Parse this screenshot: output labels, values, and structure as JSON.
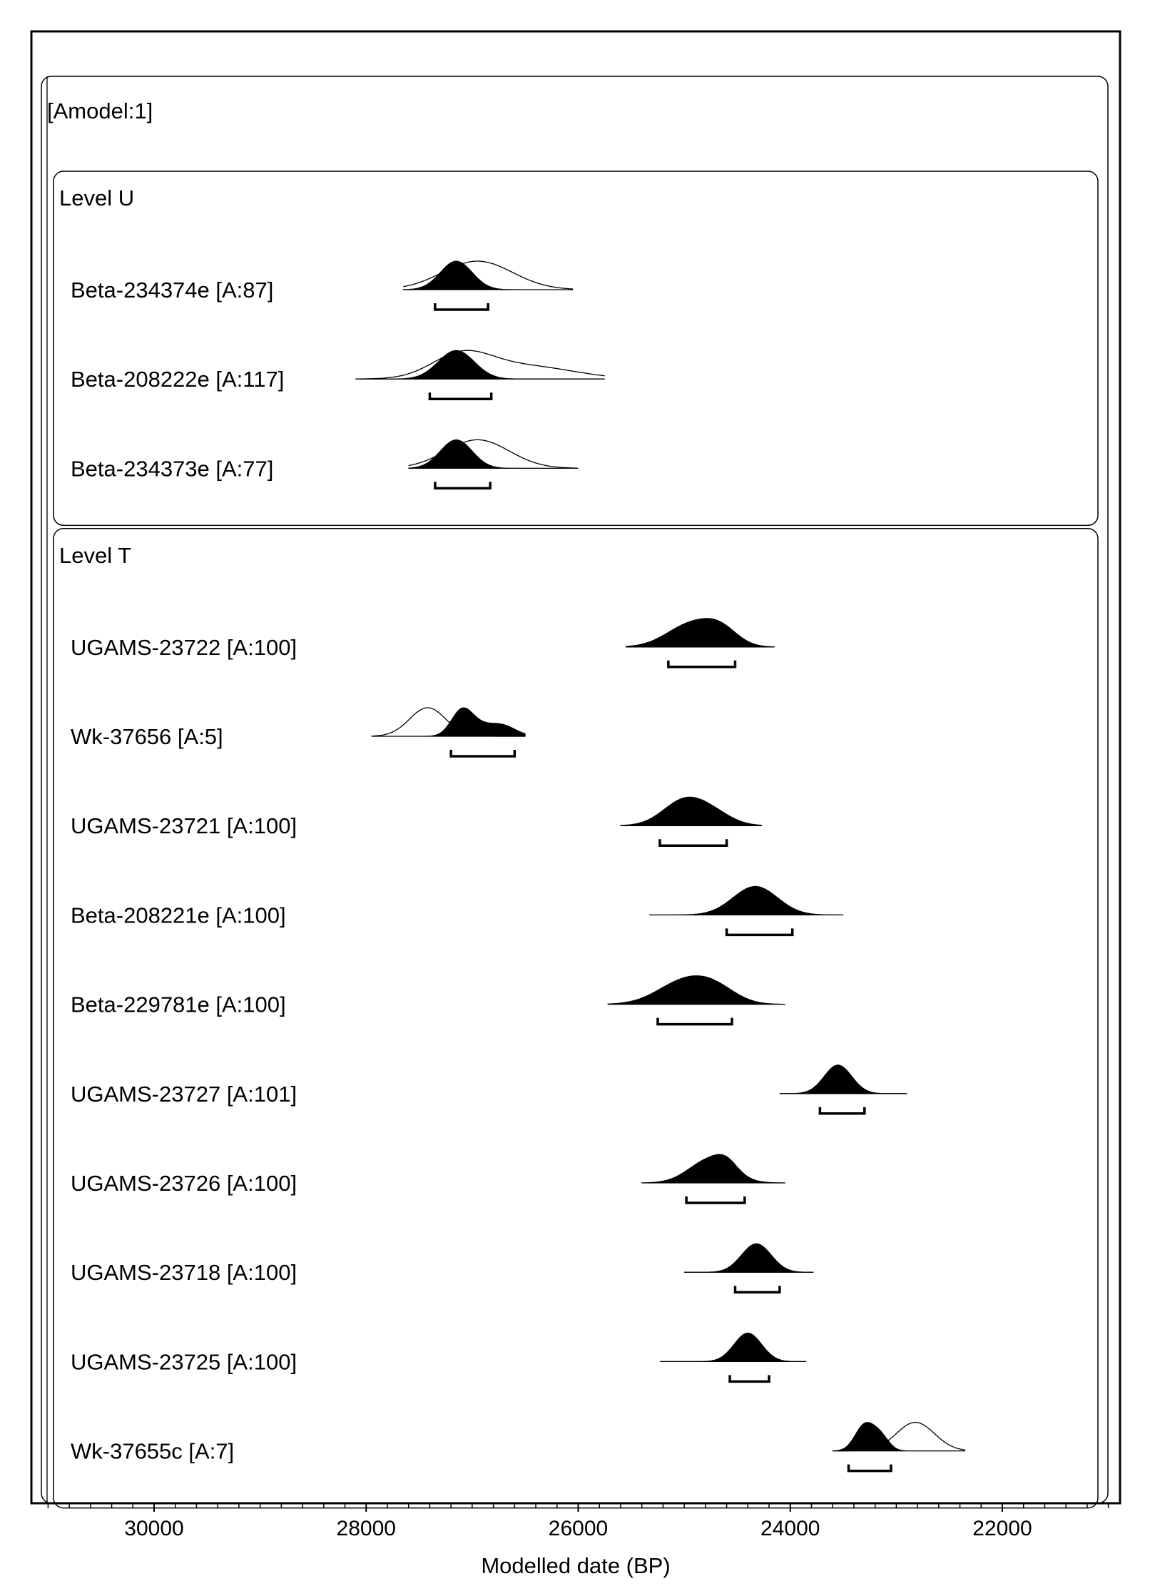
{
  "chart_data": {
    "type": "area",
    "title": "",
    "xlabel": "Modelled date (BP)",
    "ylabel": "",
    "x_axis": {
      "reversed": true,
      "xlim": [
        31030,
        20830
      ],
      "major_ticks": [
        30000,
        28000,
        26000,
        24000,
        22000
      ],
      "tick_labels": [
        "30000",
        "28000",
        "26000",
        "24000",
        "22000"
      ],
      "minor_step": 200
    },
    "grid": false,
    "legend": "none",
    "model": {
      "label": "[Amodel:1]",
      "groups": [
        {
          "label": "Level U",
          "samples": [
            {
              "label": "Beta-234374e [A:87]",
              "modelled": [
                {
                  "c": 27150,
                  "s": 150,
                  "w": 1.0
                }
              ],
              "unmodelled": [
                {
                  "c": 26950,
                  "s": 330,
                  "w": 1.0
                }
              ],
              "range": [
                27350,
                26850
              ],
              "span": [
                27650,
                26050
              ]
            },
            {
              "label": "Beta-208222e [A:117]",
              "modelled": [
                {
                  "c": 27150,
                  "s": 170,
                  "w": 1.0
                }
              ],
              "unmodelled": [
                {
                  "c": 27100,
                  "s": 280,
                  "w": 0.8
                },
                {
                  "c": 26500,
                  "s": 450,
                  "w": 0.45
                }
              ],
              "range": [
                27400,
                26820
              ],
              "span": [
                28100,
                25750
              ]
            },
            {
              "label": "Beta-234373e [A:77]",
              "modelled": [
                {
                  "c": 27150,
                  "s": 150,
                  "w": 1.0
                }
              ],
              "unmodelled": [
                {
                  "c": 26950,
                  "s": 300,
                  "w": 1.0
                }
              ],
              "range": [
                27350,
                26830
              ],
              "span": [
                27600,
                26000
              ]
            }
          ]
        },
        {
          "label": "Level T",
          "samples": [
            {
              "label": "UGAMS-23722 [A:100]",
              "modelled": [
                {
                  "c": 24930,
                  "s": 230,
                  "w": 1.0
                },
                {
                  "c": 24650,
                  "s": 160,
                  "w": 0.6
                }
              ],
              "unmodelled": [],
              "range": [
                25150,
                24520
              ],
              "span": [
                25550,
                24150
              ]
            },
            {
              "label": "Wk-37656 [A:5]",
              "modelled": [
                {
                  "c": 27100,
                  "s": 100,
                  "w": 1.0
                },
                {
                  "c": 26720,
                  "s": 130,
                  "w": 0.45
                },
                {
                  "c": 26950,
                  "s": 120,
                  "w": 0.35
                }
              ],
              "unmodelled": [
                {
                  "c": 27420,
                  "s": 170,
                  "w": 1.0
                }
              ],
              "range": [
                27200,
                26600
              ],
              "span": [
                27950,
                26500
              ]
            },
            {
              "label": "UGAMS-23721 [A:100]",
              "modelled": [
                {
                  "c": 25000,
                  "s": 200,
                  "w": 1.0
                },
                {
                  "c": 24720,
                  "s": 180,
                  "w": 0.4
                }
              ],
              "unmodelled": [],
              "range": [
                25230,
                24600
              ],
              "span": [
                25600,
                24270
              ]
            },
            {
              "label": "Beta-208221e [A:100]",
              "modelled": [
                {
                  "c": 24330,
                  "s": 210,
                  "w": 1.0
                }
              ],
              "unmodelled": [],
              "range": [
                24600,
                23980
              ],
              "span": [
                25330,
                23500
              ]
            },
            {
              "label": "Beta-229781e [A:100]",
              "modelled": [
                {
                  "c": 25000,
                  "s": 250,
                  "w": 1.0
                },
                {
                  "c": 24700,
                  "s": 200,
                  "w": 0.55
                }
              ],
              "unmodelled": [],
              "range": [
                25250,
                24550
              ],
              "span": [
                25720,
                24050
              ]
            },
            {
              "label": "UGAMS-23727 [A:101]",
              "modelled": [
                {
                  "c": 23550,
                  "s": 130,
                  "w": 1.0
                }
              ],
              "unmodelled": [],
              "range": [
                23720,
                23300
              ],
              "span": [
                24100,
                22900
              ]
            },
            {
              "label": "UGAMS-23726 [A:100]",
              "modelled": [
                {
                  "c": 24750,
                  "s": 200,
                  "w": 1.0
                },
                {
                  "c": 24600,
                  "s": 100,
                  "w": 0.35
                }
              ],
              "unmodelled": [],
              "range": [
                24980,
                24430
              ],
              "span": [
                25400,
                24050
              ]
            },
            {
              "label": "UGAMS-23718 [A:100]",
              "modelled": [
                {
                  "c": 24320,
                  "s": 140,
                  "w": 1.0
                }
              ],
              "unmodelled": [],
              "range": [
                24520,
                24100
              ],
              "span": [
                25000,
                23780
              ]
            },
            {
              "label": "UGAMS-23725 [A:100]",
              "modelled": [
                {
                  "c": 24400,
                  "s": 130,
                  "w": 1.0
                }
              ],
              "unmodelled": [],
              "range": [
                24570,
                24200
              ],
              "span": [
                25230,
                23850
              ]
            },
            {
              "label": "Wk-37655c [A:7]",
              "modelled": [
                {
                  "c": 23300,
                  "s": 90,
                  "w": 1.0
                },
                {
                  "c": 23150,
                  "s": 80,
                  "w": 0.55
                }
              ],
              "unmodelled": [
                {
                  "c": 22820,
                  "s": 180,
                  "w": 1.0
                }
              ],
              "range": [
                23450,
                23050
              ],
              "span": [
                23600,
                22350
              ]
            }
          ]
        }
      ]
    }
  }
}
